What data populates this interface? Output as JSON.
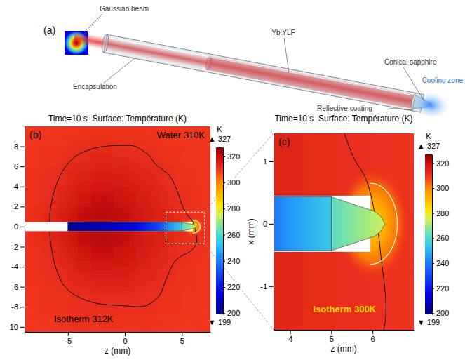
{
  "chart_data": [
    {
      "type": "schematic",
      "label": "(a)",
      "labels": {
        "beam": "Gaussian beam",
        "encapsulation": "Encapsulation",
        "crystal": "Yb:YLF",
        "sapphire": "Conical sapphire",
        "coating": "Reflective coating",
        "cooling": "Cooling zone"
      }
    },
    {
      "type": "heatmap",
      "label": "(b)",
      "title": "Time=10 s  Surface: Température (K)",
      "x_label": "z (mm)",
      "xlim": [
        -8.8,
        7.5
      ],
      "xticks": [
        -5,
        0,
        5
      ],
      "ylim": [
        -10.5,
        10
      ],
      "yticks": [
        -10,
        -8,
        -6,
        -4,
        -2,
        0,
        2,
        4,
        6,
        8
      ],
      "annotations": [
        "Water 310K",
        "Isotherm 312K"
      ],
      "colorbar": {
        "label": "K",
        "range": [
          199,
          327
        ],
        "ticks": [
          200,
          220,
          240,
          260,
          280,
          300,
          320
        ],
        "max_label": "▲ 327",
        "min_label": "▼ 199"
      }
    },
    {
      "type": "heatmap",
      "label": "(c)",
      "title": "Time=10 s  Surface: Température (K)",
      "x_label": "z (mm)",
      "y_label": "x (mm)",
      "xlim": [
        3.6,
        7
      ],
      "xticks": [
        4,
        5,
        6
      ],
      "ylim": [
        -1.7,
        1.45
      ],
      "yticks": [
        -1,
        0,
        1
      ],
      "annotations": [
        "Isotherm 300K"
      ],
      "colorbar": {
        "label": "K",
        "range": [
          199,
          327
        ],
        "ticks": [
          200,
          220,
          240,
          260,
          280,
          300,
          320
        ],
        "max_label": "▲ 327",
        "min_label": "▼ 199"
      }
    }
  ],
  "simulation": {
    "field": {
      "z": [
        -8.8,
        -7,
        -5,
        -3,
        -1,
        1,
        3,
        5,
        7.5
      ],
      "x": [
        -10.5,
        -8,
        -6,
        -4,
        -2,
        0,
        2,
        4,
        6,
        8,
        10
      ],
      "values": [
        [
          310,
          310,
          311,
          311,
          311,
          311,
          310,
          310
        ],
        [
          310,
          311,
          312,
          313,
          313,
          312,
          311,
          310
        ],
        [
          311,
          312,
          315,
          316,
          316,
          314,
          312,
          310
        ],
        [
          311,
          313,
          318,
          320,
          319,
          316,
          313,
          311
        ],
        [
          312,
          315,
          321,
          323,
          321,
          317,
          314,
          311
        ],
        [
          312,
          315,
          321,
          323,
          321,
          317,
          314,
          311
        ],
        [
          311,
          313,
          318,
          320,
          319,
          316,
          313,
          311
        ],
        [
          311,
          312,
          315,
          316,
          316,
          314,
          312,
          310
        ],
        [
          310,
          311,
          313,
          314,
          313,
          312,
          311,
          310
        ],
        [
          310,
          310,
          311,
          311,
          311,
          311,
          310,
          310
        ]
      ]
    },
    "void": {
      "z": [
        -8.8,
        5.95
      ],
      "x": [
        -0.45,
        0.45
      ]
    },
    "crystal": {
      "z": [
        -5,
        -3,
        -1,
        1,
        3,
        4,
        5
      ],
      "temperature": [
        203,
        206,
        210,
        216,
        230,
        245,
        255
      ],
      "x": [
        -0.43,
        0.43
      ]
    },
    "sapphire": {
      "z": [
        5,
        5.6,
        6.3
      ],
      "temperature": [
        262,
        268,
        275
      ],
      "profile_z": [
        5,
        6.05,
        6.2,
        6.3
      ],
      "profile_x": [
        0.43,
        0.2,
        0.12,
        0
      ]
    },
    "halo": {
      "z": 6.0,
      "x": 0,
      "r": [
        0,
        0.3,
        0.6,
        0.9
      ],
      "temperature": [
        285,
        293,
        302,
        311
      ]
    },
    "isotherms": [
      {
        "z": [
          -6.6,
          -6.5,
          -6,
          -5.2,
          -4.2,
          -3,
          -1.8,
          0,
          0.9,
          2.1,
          2.7,
          3.9,
          4.5,
          5.0,
          5.5,
          5.85,
          6.1,
          6.2,
          6.3,
          5.8,
          4.5,
          3.6,
          3.0,
          1.8,
          0,
          -3,
          -5.1,
          -6,
          -6.5,
          -6.6
        ],
        "x": [
          0.4,
          2,
          4.2,
          6,
          7.1,
          7.7,
          8,
          8.1,
          8,
          7.1,
          6.2,
          5.1,
          3.8,
          2.2,
          1.12,
          0.7,
          0,
          -0.5,
          -1.6,
          -2.4,
          -3.3,
          -5.3,
          -6.9,
          -7.9,
          -7.9,
          -7.5,
          -6.2,
          -4.3,
          -1.7,
          -0.4
        ]
      },
      {
        "center_z": 5.95,
        "center_x": 0,
        "radius": 0.65
      }
    ]
  }
}
